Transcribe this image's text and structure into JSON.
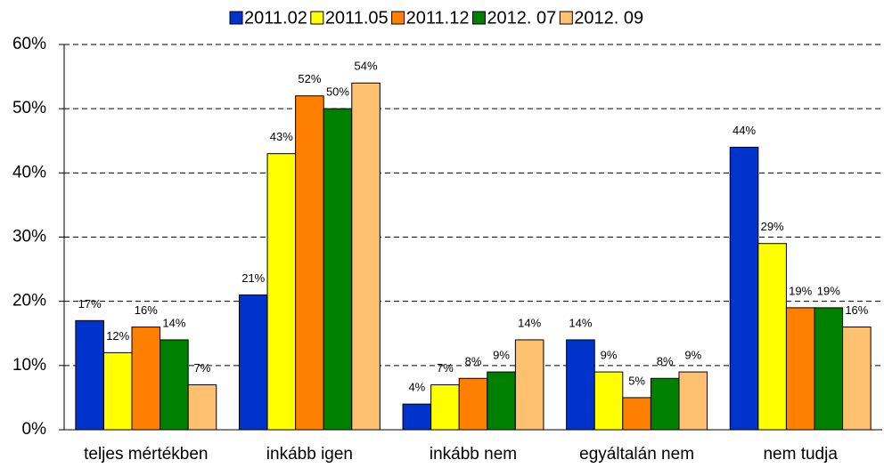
{
  "chart_data": {
    "type": "bar",
    "categories": [
      "teljes mértékben",
      "inkább igen",
      "inkább nem",
      "egyáltalán nem",
      "nem tudja"
    ],
    "series": [
      {
        "name": "2011.02",
        "color": "#0033cc",
        "values": [
          17,
          21,
          4,
          14,
          44
        ],
        "value_labels": [
          "17%",
          "21%",
          "4%",
          "14%",
          "44%"
        ]
      },
      {
        "name": "2011.05",
        "color": "#ffff00",
        "values": [
          12,
          43,
          7,
          9,
          29
        ],
        "value_labels": [
          "12%",
          "43%",
          "7%",
          "9%",
          "29%"
        ]
      },
      {
        "name": "2011.12",
        "color": "#ff7f00",
        "values": [
          16,
          52,
          8,
          5,
          19
        ],
        "value_labels": [
          "16%",
          "52%",
          "8%",
          "5%",
          "19%"
        ]
      },
      {
        "name": "2012. 07",
        "color": "#008000",
        "values": [
          14,
          50,
          9,
          8,
          19
        ],
        "value_labels": [
          "14%",
          "50%",
          "9%",
          "8%",
          "19%"
        ]
      },
      {
        "name": "2012. 09",
        "color": "#ffc06f",
        "values": [
          7,
          54,
          14,
          9,
          16
        ],
        "value_labels": [
          "7%",
          "54%",
          "14%",
          "9%",
          "16%"
        ]
      }
    ],
    "ylim": [
      0,
      60
    ],
    "yticks": [
      {
        "value": 0,
        "label": "0%"
      },
      {
        "value": 10,
        "label": "10%"
      },
      {
        "value": 20,
        "label": "20%"
      },
      {
        "value": 30,
        "label": "30%"
      },
      {
        "value": 40,
        "label": "40%"
      },
      {
        "value": 50,
        "label": "50%"
      },
      {
        "value": 60,
        "label": "60%"
      }
    ],
    "grid": true,
    "legend": "top"
  }
}
